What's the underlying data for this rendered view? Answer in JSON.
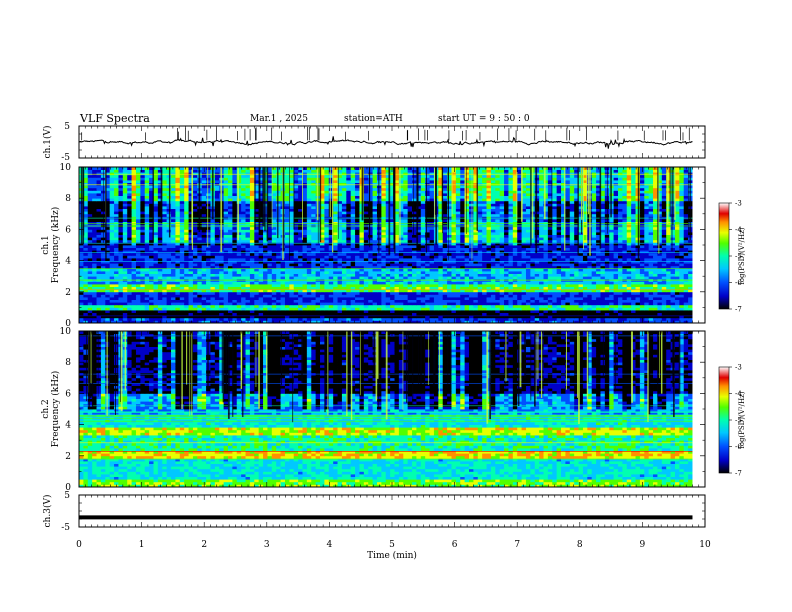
{
  "header": {
    "title": "VLF  Spectra",
    "date": "Mar.1  , 2025",
    "station": "station=ATH",
    "start_ut": "start  UT  =   9  : 50 : 0"
  },
  "chart_data": [
    {
      "id": "ch1-waveform",
      "type": "line",
      "ylabel": "ch.1(V)",
      "yticks": [
        "5",
        "-5"
      ],
      "ylim": [
        -5,
        5
      ],
      "xlim": [
        0,
        10
      ],
      "x_end": 9.8,
      "baseline": 0,
      "amplitude": 0.6,
      "color": "#000000"
    },
    {
      "id": "ch1-spectrogram",
      "type": "heatmap",
      "ylabel": "Frequency  (kHz)",
      "channel_label": "ch.1",
      "yticks": [
        "0",
        "2",
        "4",
        "6",
        "8",
        "10"
      ],
      "ylim": [
        0,
        10
      ],
      "xlim": [
        0,
        10
      ],
      "x_end": 9.8,
      "colorbar": {
        "label": "log(PSD)(V²/Hz)",
        "ticks": [
          "-3",
          "-4",
          "-5",
          "-6",
          "-7"
        ],
        "range": [
          -7,
          -3
        ]
      },
      "bands": [
        {
          "f": [
            0.0,
            0.3
          ],
          "level": 0.25
        },
        {
          "f": [
            0.3,
            0.9
          ],
          "level": 0.02
        },
        {
          "f": [
            0.9,
            1.1
          ],
          "level": 0.5
        },
        {
          "f": [
            1.1,
            2.0
          ],
          "level": 0.22
        },
        {
          "f": [
            2.0,
            2.5
          ],
          "level": 0.58
        },
        {
          "f": [
            2.5,
            3.5
          ],
          "level": 0.38
        },
        {
          "f": [
            3.5,
            5.2
          ],
          "level": 0.2
        },
        {
          "f": [
            5.2,
            6.5
          ],
          "level": 0.42
        },
        {
          "f": [
            6.5,
            7.8
          ],
          "level": 0.28
        },
        {
          "f": [
            7.8,
            10.0
          ],
          "level": 0.52
        }
      ]
    },
    {
      "id": "ch2-spectrogram",
      "type": "heatmap",
      "ylabel": "Frequency  (kHz)",
      "channel_label": "ch.2",
      "yticks": [
        "0",
        "2",
        "4",
        "6",
        "8",
        "10"
      ],
      "ylim": [
        0,
        10
      ],
      "xlim": [
        0,
        10
      ],
      "x_end": 9.8,
      "colorbar": {
        "label": "log(PSD)(V²/Hz)",
        "ticks": [
          "-3",
          "-4",
          "-5",
          "-6",
          "-7"
        ],
        "range": [
          -7,
          -3
        ]
      },
      "bands": [
        {
          "f": [
            0.0,
            0.5
          ],
          "level": 0.62
        },
        {
          "f": [
            0.5,
            1.8
          ],
          "level": 0.44
        },
        {
          "f": [
            1.8,
            2.3
          ],
          "level": 0.74
        },
        {
          "f": [
            2.3,
            3.3
          ],
          "level": 0.5
        },
        {
          "f": [
            3.3,
            3.8
          ],
          "level": 0.7
        },
        {
          "f": [
            3.8,
            4.7
          ],
          "level": 0.45
        },
        {
          "f": [
            4.7,
            6.0
          ],
          "level": 0.35
        },
        {
          "f": [
            6.0,
            10.0
          ],
          "level": 0.12
        }
      ]
    },
    {
      "id": "ch3-waveform",
      "type": "line",
      "ylabel": "ch.3(V)",
      "yticks": [
        "5",
        "-5"
      ],
      "ylim": [
        -5,
        5
      ],
      "xlim": [
        0,
        10
      ],
      "x_end": 9.8,
      "baseline": -2,
      "amplitude": 0,
      "color": "#000000"
    }
  ],
  "x_axis": {
    "label": "Time  (min)",
    "ticks": [
      "0",
      "1",
      "2",
      "3",
      "4",
      "5",
      "6",
      "7",
      "8",
      "9",
      "10"
    ]
  },
  "colors": {
    "colormap": [
      "#000000",
      "#0000c8",
      "#0050ff",
      "#00c8ff",
      "#00ffb0",
      "#50ff00",
      "#e8ff00",
      "#ff9000",
      "#e00000",
      "#ffffff"
    ]
  }
}
